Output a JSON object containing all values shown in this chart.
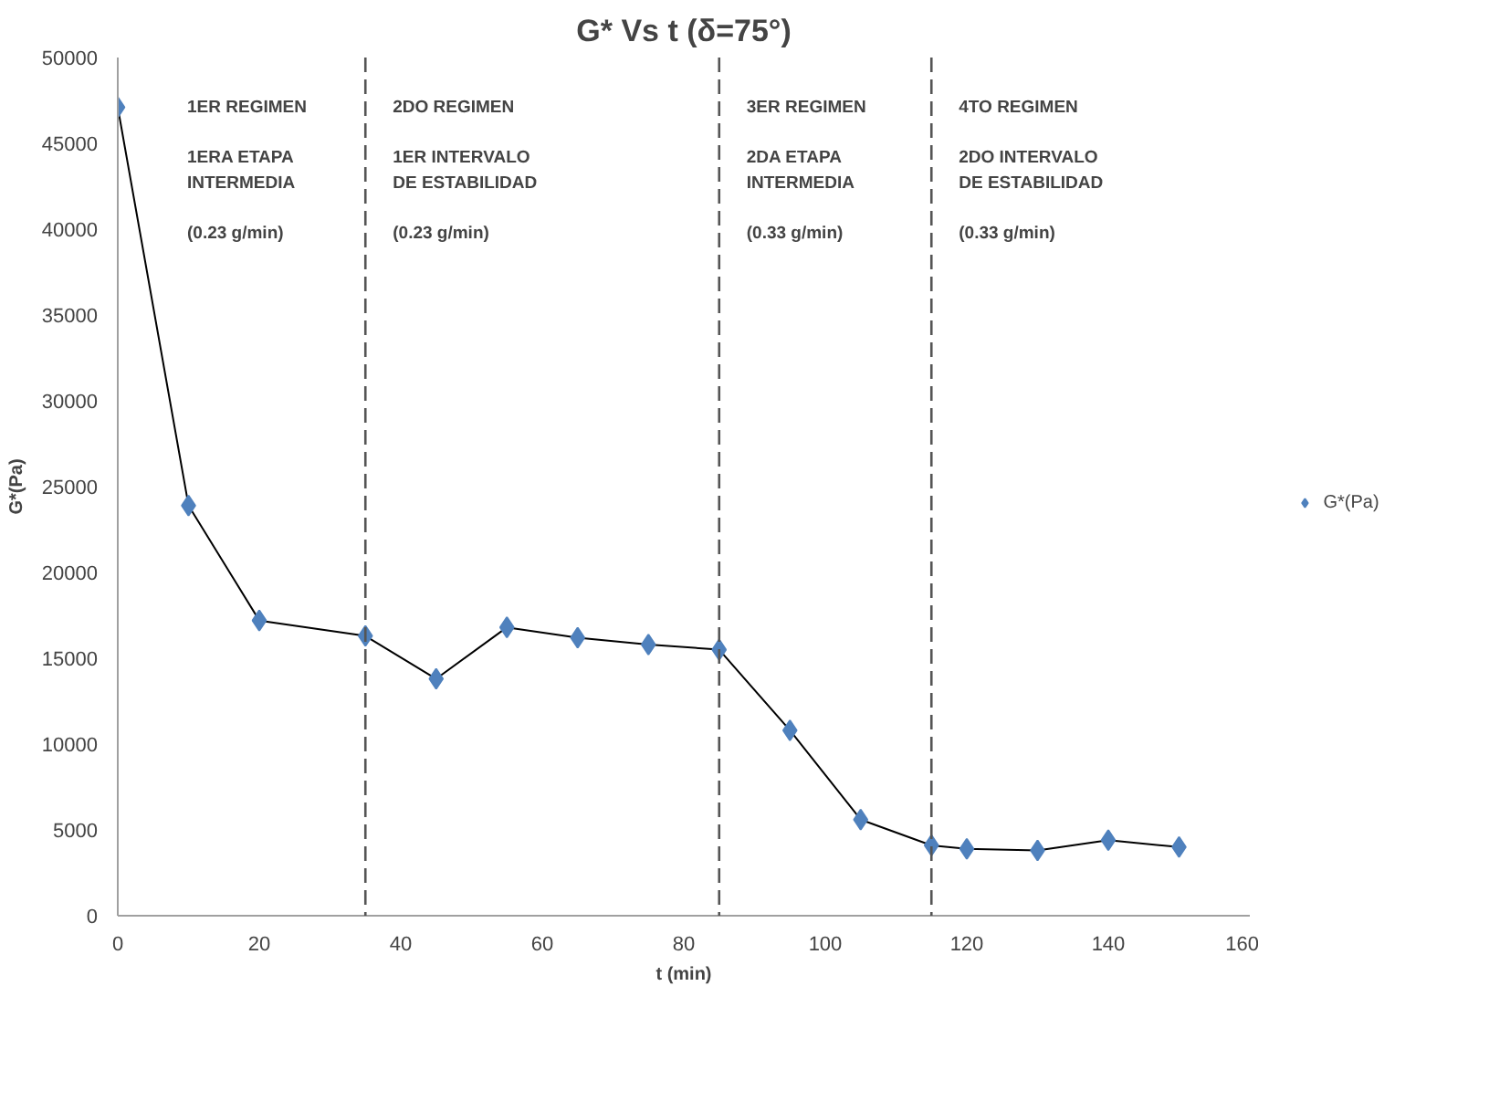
{
  "chart_data": {
    "type": "line",
    "title": "G* Vs t (δ=75°)",
    "xlabel": "t (min)",
    "ylabel": "G*(Pa)",
    "x": [
      0,
      10,
      20,
      35,
      45,
      55,
      65,
      75,
      85,
      95,
      105,
      115,
      120,
      130,
      140,
      150
    ],
    "series": [
      {
        "name": "G*(Pa)",
        "color": "#4f81bd",
        "values": [
          47100,
          23900,
          17200,
          16300,
          13800,
          16800,
          16200,
          15800,
          15500,
          10800,
          5600,
          4100,
          3900,
          3800,
          4400,
          4000
        ]
      }
    ],
    "xlim": [
      0,
      160
    ],
    "xticks": [
      0,
      20,
      40,
      60,
      80,
      100,
      120,
      140,
      160
    ],
    "ylim": [
      0,
      50000
    ],
    "yticks": [
      0,
      5000,
      10000,
      15000,
      20000,
      25000,
      30000,
      35000,
      40000,
      45000,
      50000
    ],
    "ref_lines": [
      {
        "axis": "x",
        "value": 35,
        "line_style": "dashed"
      },
      {
        "axis": "x",
        "value": 85,
        "line_style": "dashed"
      },
      {
        "axis": "x",
        "value": 115,
        "line_style": "dashed"
      }
    ],
    "annotations": [
      "1ER REGIMEN\n\n1ERA ETAPA\nINTERMEDIA\n\n(0.23 g/min)",
      "2DO REGIMEN\n\n1ER INTERVALO\nDE ESTABILIDAD\n\n(0.23 g/min)",
      "3ER REGIMEN\n\n2DA ETAPA\nINTERMEDIA\n\n(0.33 g/min)",
      "4TO REGIMEN\n\n2DO INTERVALO\nDE ESTABILIDAD\n\n(0.33 g/min)"
    ],
    "marker": "diamond",
    "line_style": "solid",
    "grid": false,
    "legend": "right"
  }
}
